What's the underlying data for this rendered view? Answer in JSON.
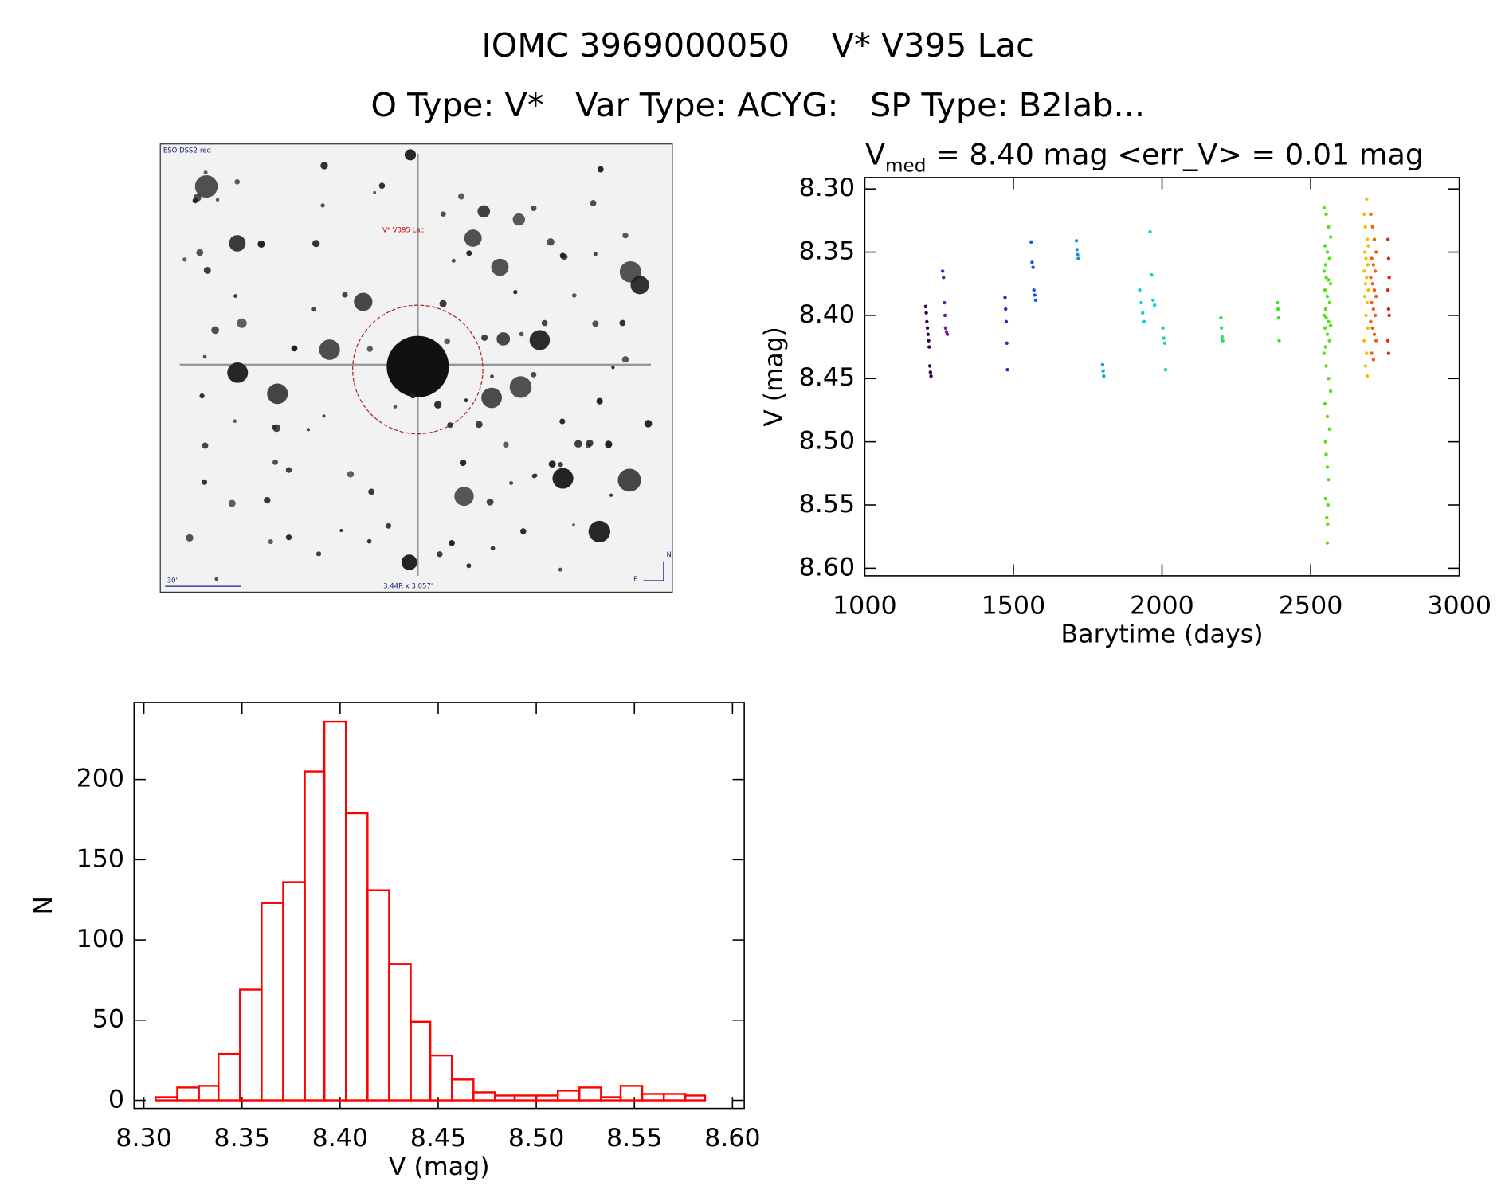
{
  "header": {
    "title": "IOMC 3969000050    V* V395 Lac",
    "subtitle": "O Type: V*   Var Type: ACYG:   SP Type: B2Iab..."
  },
  "image": {
    "survey": "ESO DSS2-red",
    "target": "V* V395 Lac",
    "scale": "30\"",
    "size": "3.44R x 3.057'",
    "north": "N",
    "east": "E"
  },
  "chart_data": [
    {
      "type": "scatter",
      "title": [
        "V",
        "med",
        " = 8.40 mag <err_V> = 0.01 mag"
      ],
      "x_label": "Barytime (days)",
      "y_label": "V (mag)",
      "xlim": [
        1000,
        3000
      ],
      "ylim": [
        8.606,
        8.291
      ],
      "xticks": [
        1000,
        1500,
        2000,
        2500,
        3000
      ],
      "yticks": [
        {
          "value": 8.3,
          "label": "8.30"
        },
        {
          "value": 8.35,
          "label": "8.35"
        },
        {
          "value": 8.4,
          "label": "8.40"
        },
        {
          "value": 8.45,
          "label": "8.45"
        },
        {
          "value": 8.5,
          "label": "8.50"
        },
        {
          "value": 8.55,
          "label": "8.55"
        },
        {
          "value": 8.6,
          "label": "8.60"
        }
      ],
      "series": [
        {
          "color": "#3a0050",
          "x": [
            1205,
            1207,
            1209,
            1211,
            1213,
            1215,
            1217,
            1219,
            1221,
            1223
          ],
          "values": [
            8.393,
            8.398,
            8.405,
            8.41,
            8.415,
            8.42,
            8.425,
            8.44,
            8.445,
            8.448
          ]
        },
        {
          "color": "#6a1aa8",
          "x": [
            1262,
            1265,
            1268,
            1270,
            1272,
            1275,
            1278
          ],
          "values": [
            8.365,
            8.37,
            8.39,
            8.4,
            8.41,
            8.413,
            8.415
          ]
        },
        {
          "color": "#2a2ad0",
          "x": [
            1472,
            1474,
            1476,
            1478,
            1480
          ],
          "values": [
            8.386,
            8.395,
            8.405,
            8.422,
            8.443
          ]
        },
        {
          "color": "#1a50e8",
          "x": [
            1560,
            1563,
            1566,
            1569,
            1572,
            1575
          ],
          "values": [
            8.342,
            8.358,
            8.362,
            8.38,
            8.384,
            8.388
          ]
        },
        {
          "color": "#1a90e0",
          "x": [
            1712,
            1714,
            1716,
            1718
          ],
          "values": [
            8.341,
            8.348,
            8.352,
            8.355
          ]
        },
        {
          "color": "#10a8d0",
          "x": [
            1800,
            1802,
            1804
          ],
          "values": [
            8.439,
            8.444,
            8.448
          ]
        },
        {
          "color": "#10d0d0",
          "x": [
            1925,
            1930,
            1935,
            1940,
            1960,
            1965,
            1970,
            1975
          ],
          "values": [
            8.38,
            8.39,
            8.398,
            8.405,
            8.334,
            8.368,
            8.388,
            8.392
          ]
        },
        {
          "color": "#20d890",
          "x": [
            2003,
            2006,
            2009,
            2012
          ],
          "values": [
            8.41,
            8.418,
            8.422,
            8.443
          ]
        },
        {
          "color": "#30e050",
          "x": [
            2198,
            2200,
            2202,
            2204
          ],
          "values": [
            8.402,
            8.41,
            8.417,
            8.42
          ]
        },
        {
          "color": "#40e030",
          "x": [
            2388,
            2390,
            2392,
            2394
          ],
          "values": [
            8.39,
            8.395,
            8.402,
            8.42
          ]
        },
        {
          "color": "#55e010",
          "x": [
            2545,
            2552,
            2560,
            2567,
            2548,
            2556,
            2563,
            2550,
            2545,
            2552,
            2560,
            2567,
            2548,
            2556,
            2563,
            2550,
            2545,
            2552,
            2560,
            2567,
            2548,
            2556,
            2563,
            2550,
            2545,
            2552,
            2560,
            2567,
            2548,
            2556,
            2563,
            2550,
            2552,
            2556,
            2560,
            2550,
            2558,
            2554,
            2557,
            2556
          ],
          "values": [
            8.315,
            8.32,
            8.33,
            8.338,
            8.345,
            8.35,
            8.355,
            8.36,
            8.365,
            8.37,
            8.372,
            8.375,
            8.38,
            8.385,
            8.39,
            8.395,
            8.4,
            8.402,
            8.405,
            8.408,
            8.41,
            8.415,
            8.42,
            8.425,
            8.43,
            8.44,
            8.45,
            8.46,
            8.47,
            8.48,
            8.49,
            8.5,
            8.51,
            8.52,
            8.53,
            8.545,
            8.55,
            8.56,
            8.565,
            8.58
          ]
        },
        {
          "color": "#f0c000",
          "x": [
            2688,
            2680,
            2684,
            2690,
            2694,
            2682,
            2686,
            2692,
            2680,
            2688,
            2684,
            2694,
            2682,
            2690,
            2686,
            2692,
            2680,
            2688,
            2684,
            2690
          ],
          "values": [
            8.308,
            8.32,
            8.33,
            8.34,
            8.345,
            8.35,
            8.355,
            8.36,
            8.365,
            8.37,
            8.375,
            8.38,
            8.385,
            8.39,
            8.4,
            8.41,
            8.42,
            8.43,
            8.44,
            8.448
          ]
        },
        {
          "color": "#f06010",
          "x": [
            2702,
            2708,
            2714,
            2720,
            2705,
            2711,
            2717,
            2702,
            2708,
            2714,
            2720,
            2705,
            2711,
            2717,
            2702,
            2708,
            2714,
            2720,
            2705,
            2711
          ],
          "values": [
            8.32,
            8.33,
            8.34,
            8.35,
            8.355,
            8.36,
            8.365,
            8.37,
            8.375,
            8.38,
            8.385,
            8.39,
            8.395,
            8.4,
            8.405,
            8.41,
            8.415,
            8.42,
            8.43,
            8.435
          ]
        },
        {
          "color": "#e02010",
          "x": [
            2760,
            2762,
            2764,
            2760,
            2762,
            2764,
            2760,
            2762
          ],
          "values": [
            8.34,
            8.355,
            8.37,
            8.38,
            8.395,
            8.4,
            8.42,
            8.43
          ]
        }
      ]
    },
    {
      "type": "histogram",
      "x_label": "V (mag)",
      "y_label": "N",
      "color": "#ff0000",
      "xlim": [
        8.295,
        8.606
      ],
      "ylim": [
        -5,
        248
      ],
      "xticks": [
        {
          "value": 8.3,
          "label": "8.30"
        },
        {
          "value": 8.35,
          "label": "8.35"
        },
        {
          "value": 8.4,
          "label": "8.40"
        },
        {
          "value": 8.45,
          "label": "8.45"
        },
        {
          "value": 8.5,
          "label": "8.50"
        },
        {
          "value": 8.55,
          "label": "8.55"
        },
        {
          "value": 8.6,
          "label": "8.60"
        }
      ],
      "yticks": [
        0,
        50,
        100,
        150,
        200
      ],
      "bins": [
        8.306,
        8.317,
        8.328,
        8.338,
        8.349,
        8.36,
        8.371,
        8.382,
        8.392,
        8.403,
        8.414,
        8.425,
        8.436,
        8.446,
        8.457,
        8.468,
        8.479,
        8.489,
        8.5,
        8.511,
        8.522,
        8.533,
        8.543,
        8.554,
        8.565,
        8.576,
        8.586
      ],
      "values": [
        2,
        8,
        9,
        29,
        69,
        123,
        136,
        205,
        236,
        179,
        131,
        85,
        49,
        28,
        13,
        5,
        3,
        3,
        3,
        6,
        8,
        2,
        9,
        4,
        4,
        3
      ]
    }
  ]
}
